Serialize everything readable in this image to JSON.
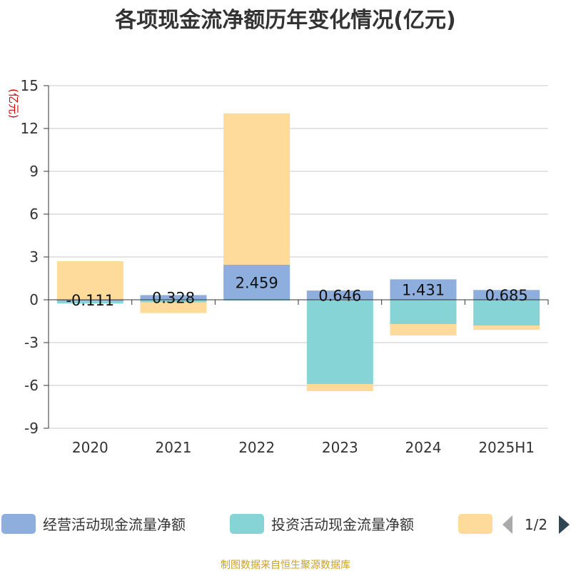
{
  "chart_data": {
    "type": "bar",
    "stacked": true,
    "title": "各项现金流净额历年变化情况(亿元)",
    "unit_label": "(亿元)",
    "categories": [
      "2020",
      "2021",
      "2022",
      "2023",
      "2024",
      "2025H1"
    ],
    "ylim": [
      -9,
      15
    ],
    "yticks": [
      15,
      12,
      9,
      6,
      3,
      0,
      -3,
      -6,
      -9
    ],
    "grid": true,
    "legend_position": "bottom",
    "series": [
      {
        "name": "经营活动现金流量净额",
        "color": "#8eaedd",
        "values": [
          -0.111,
          0.328,
          2.459,
          0.646,
          1.431,
          0.685
        ],
        "labels": [
          "-0.111",
          "0.328",
          "2.459",
          "0.646",
          "1.431",
          "0.685"
        ]
      },
      {
        "name": "投资活动现金流量净额",
        "color": "#86d4d6",
        "values": [
          -0.15,
          -0.18,
          -0.05,
          -5.9,
          -1.7,
          -1.8
        ]
      },
      {
        "name": "",
        "color": "#fedb9b",
        "values": [
          2.7,
          -0.75,
          10.6,
          -0.5,
          -0.8,
          -0.3
        ]
      }
    ]
  },
  "legend": {
    "page": "1/2"
  },
  "footer": "制图数据来自恒生聚源数据库"
}
